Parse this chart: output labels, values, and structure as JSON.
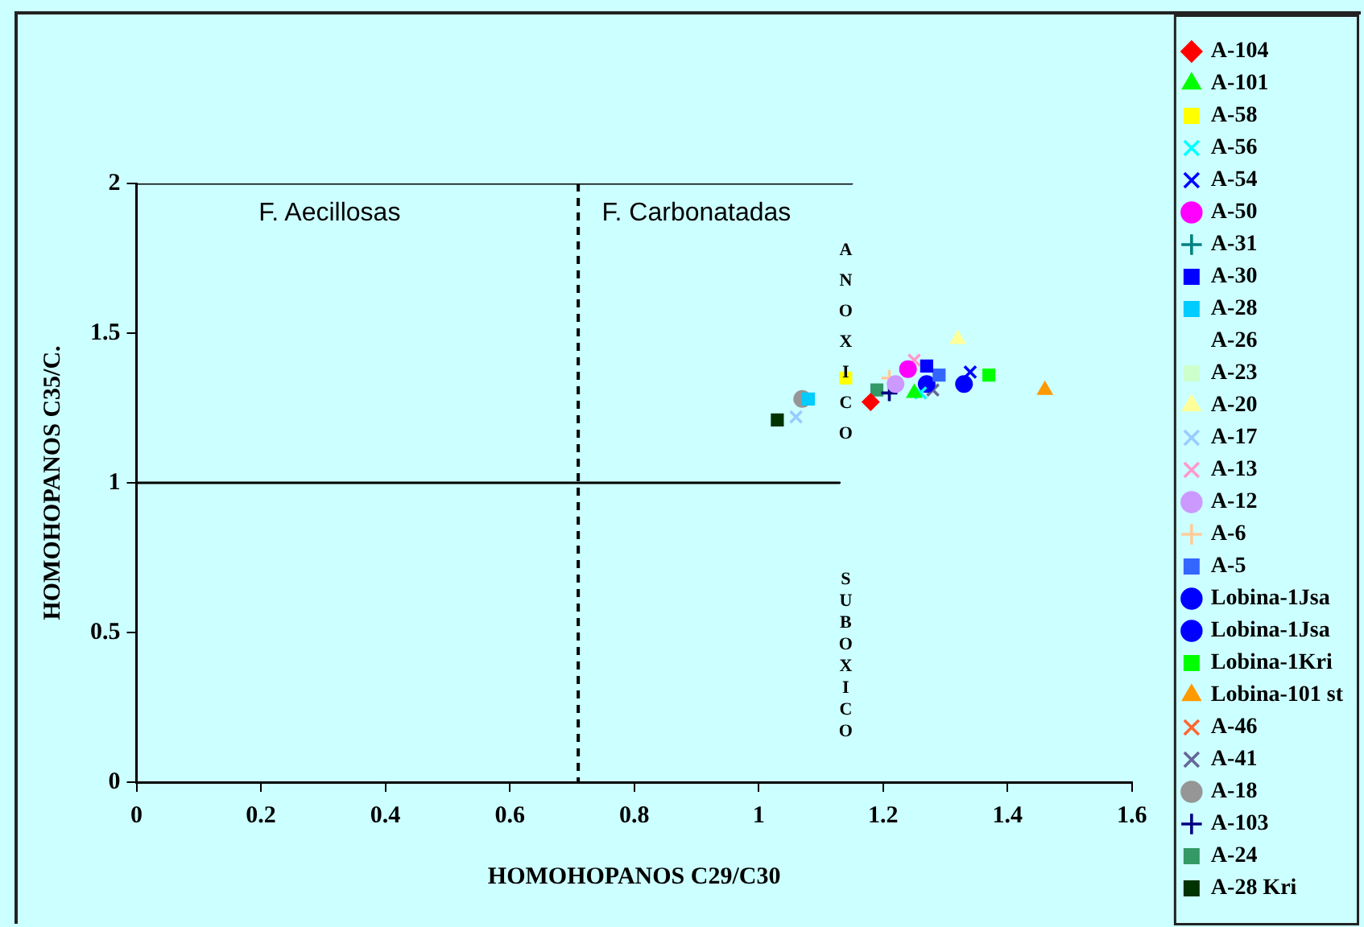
{
  "chart_data": {
    "type": "scatter",
    "xlabel": "HOMOHOPANOS C29/C30",
    "ylabel": "HOMOHOPANOS C35/C.",
    "xlim": [
      0,
      1.6
    ],
    "xticks": [
      0,
      0.2,
      0.4,
      0.6,
      0.8,
      1,
      1.2,
      1.4,
      1.6
    ],
    "ylim": [
      0,
      2
    ],
    "yticks": [
      0,
      0.5,
      1,
      1.5,
      2
    ],
    "legend": "right",
    "series": [
      {
        "name": "A-104",
        "color": "#ff0000",
        "marker": "diamond",
        "x": [
          1.18
        ],
        "values": [
          1.27
        ]
      },
      {
        "name": "A-101",
        "color": "#00ff00",
        "marker": "triangle",
        "x": [
          1.25
        ],
        "values": [
          1.3
        ]
      },
      {
        "name": "A-58",
        "color": "#ffff00",
        "marker": "square",
        "x": [
          1.14
        ],
        "values": [
          1.35
        ]
      },
      {
        "name": "A-56",
        "color": "#00ffff",
        "marker": "cross",
        "x": [
          1.26
        ],
        "values": [
          1.3
        ]
      },
      {
        "name": "A-54",
        "color": "#0000ff",
        "marker": "cross",
        "x": [
          1.34
        ],
        "values": [
          1.37
        ]
      },
      {
        "name": "A-50",
        "color": "#ff00ff",
        "marker": "circle",
        "x": [
          1.24
        ],
        "values": [
          1.38
        ]
      },
      {
        "name": "A-31",
        "color": "#008080",
        "marker": "plus",
        "x": [
          null
        ],
        "values": [
          null
        ]
      },
      {
        "name": "A-30",
        "color": "#0000ff",
        "marker": "square",
        "x": [
          1.27
        ],
        "values": [
          1.39
        ]
      },
      {
        "name": "A-28",
        "color": "#00ccff",
        "marker": "square",
        "x": [
          1.08
        ],
        "values": [
          1.28
        ]
      },
      {
        "name": "A-26",
        "marker": "none",
        "x": [
          null
        ],
        "values": [
          null
        ]
      },
      {
        "name": "A-23",
        "color": "#ccffcc",
        "marker": "square",
        "x": [
          null
        ],
        "values": [
          null
        ]
      },
      {
        "name": "A-20",
        "color": "#ffff99",
        "marker": "triangle",
        "x": [
          1.32
        ],
        "values": [
          1.48
        ]
      },
      {
        "name": "A-17",
        "color": "#99ccff",
        "marker": "cross",
        "x": [
          1.06
        ],
        "values": [
          1.22
        ]
      },
      {
        "name": "A-13",
        "color": "#ff99cc",
        "marker": "cross",
        "x": [
          1.25
        ],
        "values": [
          1.41
        ]
      },
      {
        "name": "A-12",
        "color": "#cc99ff",
        "marker": "circle",
        "x": [
          1.22
        ],
        "values": [
          1.33
        ]
      },
      {
        "name": "A-6",
        "color": "#ffcc99",
        "marker": "plus",
        "x": [
          1.21
        ],
        "values": [
          1.35
        ]
      },
      {
        "name": "A-5",
        "color": "#3366ff",
        "marker": "square",
        "x": [
          1.29
        ],
        "values": [
          1.36
        ]
      },
      {
        "name": "Lobina-1Jsa",
        "color": "#0000ff",
        "marker": "circle",
        "x": [
          1.27
        ],
        "values": [
          1.33
        ]
      },
      {
        "name": "Lobina-1Jsa",
        "color": "#0000ff",
        "marker": "circle",
        "x": [
          1.33
        ],
        "values": [
          1.33
        ]
      },
      {
        "name": "Lobina-1Kri",
        "color": "#00ff00",
        "marker": "square",
        "x": [
          1.37
        ],
        "values": [
          1.36
        ]
      },
      {
        "name": "Lobina-101 st",
        "color": "#ff9900",
        "marker": "triangle",
        "x": [
          1.46
        ],
        "values": [
          1.31
        ]
      },
      {
        "name": "A-46",
        "color": "#ff6633",
        "marker": "cross",
        "x": [
          null
        ],
        "values": [
          null
        ]
      },
      {
        "name": "A-41",
        "color": "#666699",
        "marker": "cross",
        "x": [
          1.28
        ],
        "values": [
          1.31
        ]
      },
      {
        "name": "A-18",
        "color": "#969696",
        "marker": "circle",
        "x": [
          1.07
        ],
        "values": [
          1.28
        ]
      },
      {
        "name": "A-103",
        "color": "#000080",
        "marker": "plus",
        "x": [
          1.21
        ],
        "values": [
          1.3
        ]
      },
      {
        "name": "A-24",
        "color": "#339966",
        "marker": "square",
        "x": [
          1.19
        ],
        "values": [
          1.31
        ]
      },
      {
        "name": "A-28 Kri",
        "color": "#003300",
        "marker": "square",
        "x": [
          1.03
        ],
        "values": [
          1.21
        ]
      },
      {
        "type": "line",
        "color": "#000000",
        "marker": "none",
        "x": [
          0,
          1.15
        ],
        "values": [
          2,
          2
        ]
      },
      {
        "type": "line",
        "color": "#000000",
        "marker": "none",
        "x": [
          0,
          1.13
        ],
        "values": [
          1,
          1
        ]
      }
    ],
    "ref_lines": [
      {
        "axis": "x",
        "value": 0.71,
        "color": "#000000",
        "line_style": "dashed"
      }
    ],
    "annotations": [
      "F. Aecillosas",
      "F. Carbonatadas",
      "ANOXICO",
      "SUBOXICO"
    ]
  }
}
